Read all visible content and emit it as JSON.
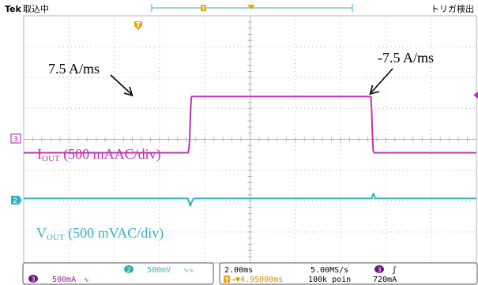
{
  "header": {
    "brand": "Tek",
    "acq_status": "取込中",
    "trigger_status": "トリガ検出"
  },
  "markers": {
    "trigger_pos": "T",
    "bracket_mark": "T",
    "ch3_label": "3",
    "ch2_label": "2"
  },
  "annotations": {
    "rise_rate": "7.5 A/ms",
    "fall_rate": "-7.5 A/ms",
    "iout_main": "I",
    "iout_sub": "OUT",
    "iout_rest": " (500 mAAC/div)",
    "vout_main": "V",
    "vout_sub": "OUT",
    "vout_rest": " (500 mVAC/div)"
  },
  "status": {
    "ch2_num": "2",
    "ch2_scale": "500mV",
    "ch2_coupling": "∿∿",
    "ch3_num": "3",
    "ch3_scale": "500mA",
    "ch3_coupling": "∿",
    "timebase": "2.00ms",
    "sample_rate": "5.00MS/s",
    "trig_ch": "3",
    "trig_slope": "ʃ",
    "trig_pos_icon": "T",
    "trig_pos": "→▼4.95000ms",
    "record_length": "100k poin",
    "trig_level": "720mA"
  },
  "colors": {
    "ch3": "#c22fb2",
    "ch2": "#35b3be",
    "grid": "#b4b4b4",
    "trigger": "#f0a500",
    "ch2_badge": "#2bb0a8",
    "ch3_badge": "#6a1680"
  },
  "chart_data": {
    "type": "line",
    "x_unit": "ms",
    "xlim": [
      0,
      20
    ],
    "x_divisions": 10,
    "y_divisions": 8,
    "series": [
      {
        "name": "IOUT",
        "unit": "A",
        "scale_per_div": 0.5,
        "x": [
          0,
          7.26,
          7.3,
          7.33,
          7.36,
          7.4,
          7.42,
          15.34,
          15.37,
          15.4,
          15.44,
          15.48,
          20
        ],
        "y": [
          -0.23,
          -0.23,
          -0.17,
          -0.02,
          0.35,
          0.65,
          0.68,
          0.68,
          0.45,
          0.12,
          -0.2,
          -0.23,
          -0.23
        ]
      },
      {
        "name": "VOUT",
        "unit": "V",
        "scale_per_div": 0.5,
        "x": [
          0,
          7.25,
          7.3,
          7.36,
          7.42,
          7.5,
          15.38,
          15.42,
          15.46,
          15.52,
          20
        ],
        "y": [
          0.02,
          0.02,
          -0.03,
          -0.1,
          -0.04,
          0.02,
          0.02,
          0.08,
          0.1,
          0.02,
          0.02
        ]
      }
    ]
  }
}
